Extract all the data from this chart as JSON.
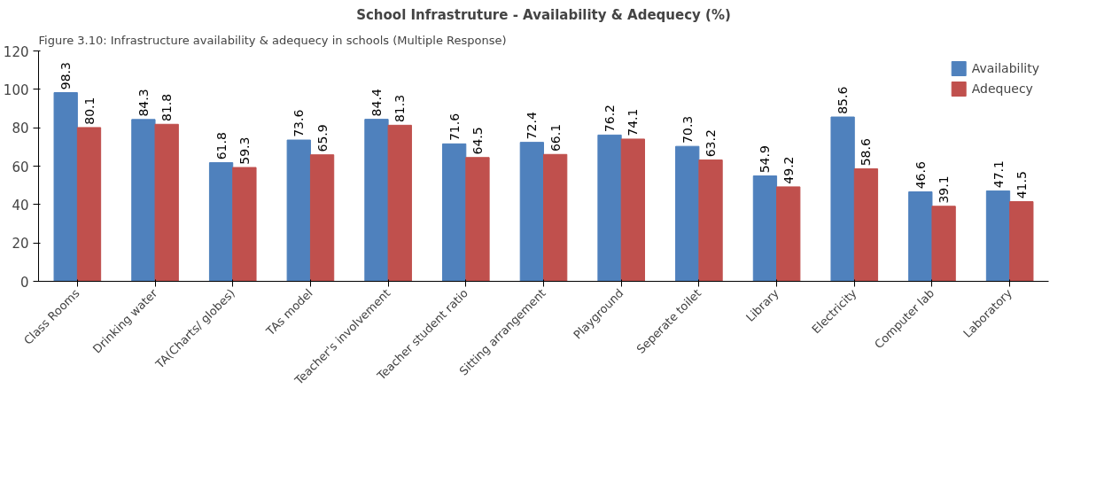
{
  "chart_data": {
    "type": "bar",
    "title": "School Infrastruture - Availability & Adequecy (%)",
    "annotations": [
      "Figure 3.10: Infrastructure availability & adequecy in schools (Multiple Response)"
    ],
    "categories": [
      "Class Rooms",
      "Drinking water",
      "TA(Charts/ globes)",
      "TAs model",
      "Teacher's involvement",
      "Teacher student ratio",
      "Sitting arrangement",
      "Playground",
      "Seperate toilet",
      "Library",
      "Electricity",
      "Computer lab",
      "Laboratory"
    ],
    "series": [
      {
        "name": "Availability",
        "color": "#4f81bd",
        "values": [
          98.3,
          84.3,
          61.8,
          73.6,
          84.4,
          71.6,
          72.4,
          76.2,
          70.3,
          54.9,
          85.6,
          46.6,
          47.1
        ]
      },
      {
        "name": "Adequecy",
        "color": "#c0504d",
        "values": [
          80.1,
          81.8,
          59.3,
          65.9,
          81.3,
          64.5,
          66.1,
          74.1,
          63.2,
          49.2,
          58.6,
          39.1,
          41.5
        ]
      }
    ],
    "ylim": [
      0,
      120
    ],
    "yticks": [
      0,
      20,
      40,
      60,
      80,
      100,
      120
    ],
    "grid": false,
    "legend": "top right",
    "data_labels": true
  }
}
